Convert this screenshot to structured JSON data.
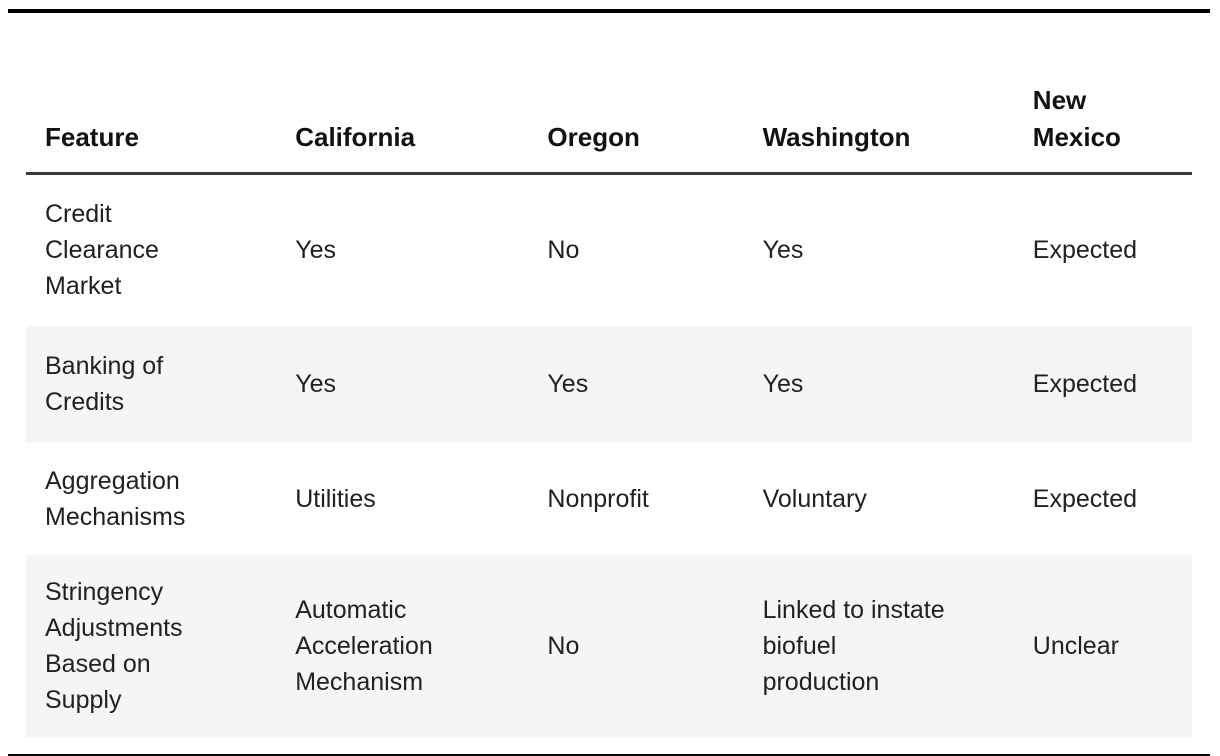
{
  "page": {
    "background_color": "#ffffff",
    "text_color": "#212121",
    "stripe_color": "#f5f5f5",
    "top_rule_color": "#000000",
    "bottom_rule_color": "#000000",
    "header_separator_color": "#3a3a3a"
  },
  "table": {
    "columns": [
      {
        "key": "feature",
        "label": "Feature"
      },
      {
        "key": "california",
        "label": "California"
      },
      {
        "key": "oregon",
        "label": "Oregon"
      },
      {
        "key": "washington",
        "label": "Washington"
      },
      {
        "key": "new_mexico",
        "label": "New\nMexico"
      }
    ],
    "rows": [
      {
        "feature": "Credit\nClearance\nMarket",
        "california": "Yes",
        "oregon": "No",
        "washington": "Yes",
        "new_mexico": "Expected"
      },
      {
        "feature": "Banking of\nCredits",
        "california": "Yes",
        "oregon": "Yes",
        "washington": "Yes",
        "new_mexico": "Expected"
      },
      {
        "feature": "Aggregation\nMechanisms",
        "california": "Utilities",
        "oregon": "Nonprofit",
        "washington": "Voluntary",
        "new_mexico": "Expected"
      },
      {
        "feature": "Stringency\nAdjustments\nBased on\nSupply",
        "california": "Automatic\nAcceleration\nMechanism",
        "oregon": "No",
        "washington": "Linked to instate\nbiofuel\nproduction",
        "new_mexico": "Unclear"
      }
    ]
  }
}
